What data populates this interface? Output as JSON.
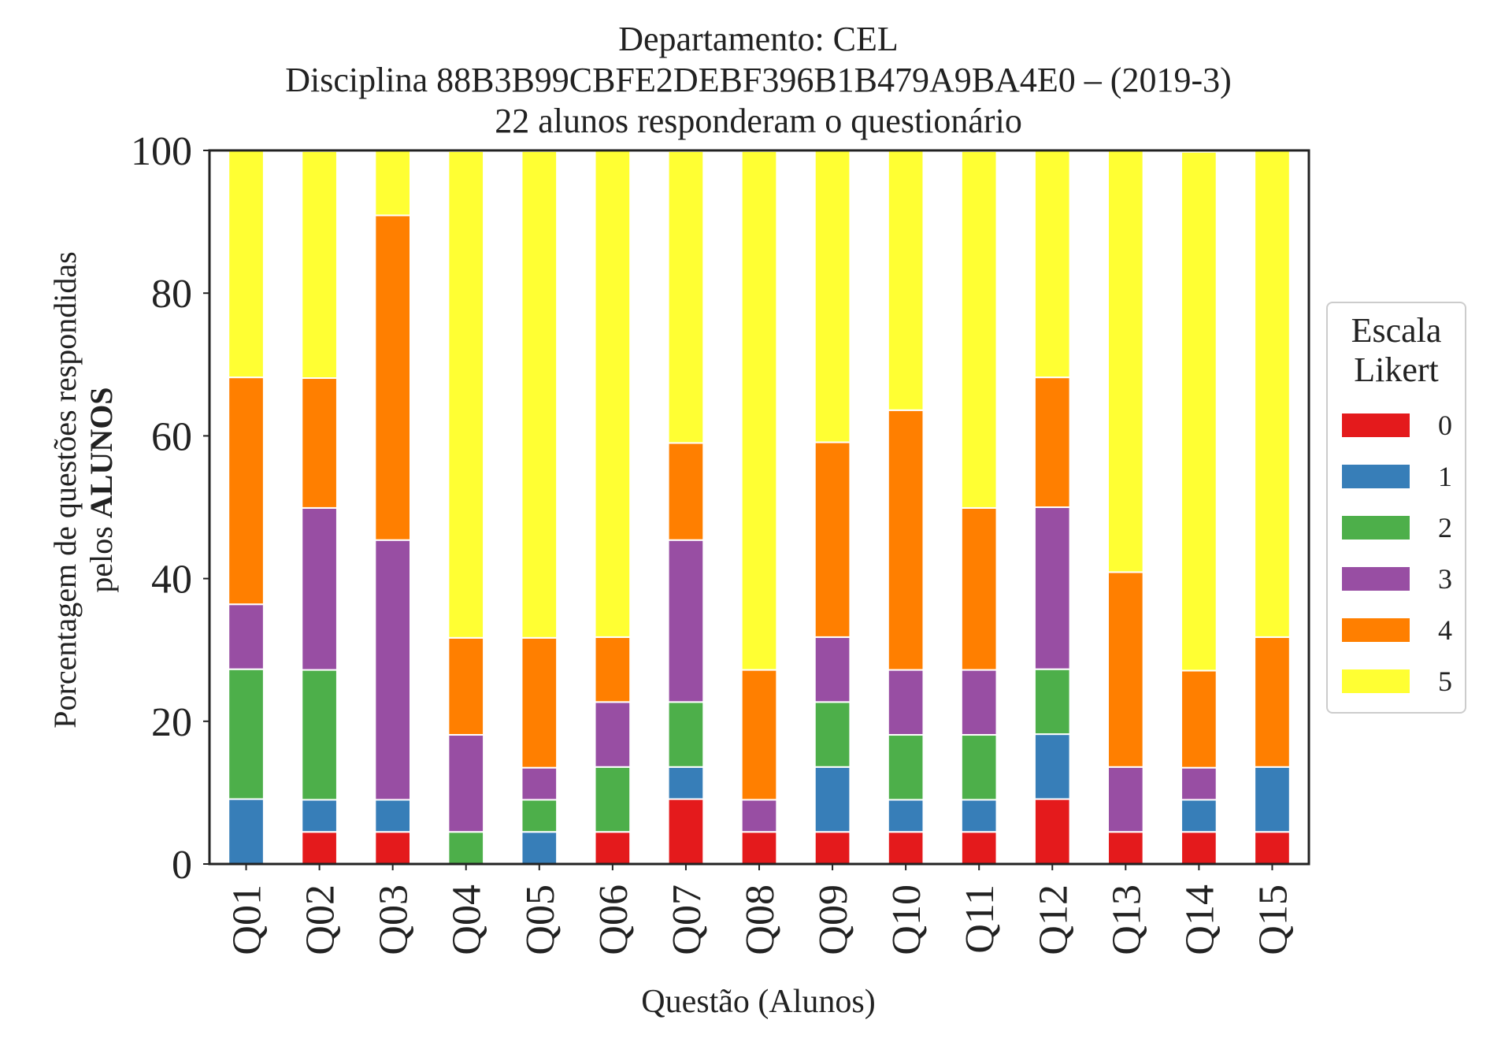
{
  "title": {
    "line1": "Departamento: CEL",
    "line2": "Disciplina 88B3B99CBFE2DEBF396B1B479A9BA4E0 – (2019-3)",
    "line3": "22 alunos responderam o questionário"
  },
  "axes": {
    "ylabel_line1": "Porcentagem de questões respondidas",
    "ylabel_line2_prefix": "pelos ",
    "ylabel_line2_bold": "ALUNOS",
    "xlabel": "Questão (Alunos)"
  },
  "legend": {
    "title_line1": "Escala",
    "title_line2": "Likert",
    "placement": "center-right outside"
  },
  "chart_data": {
    "type": "bar",
    "stacked": true,
    "ylim": [
      0,
      100
    ],
    "yticks": [
      "0",
      "20",
      "40",
      "60",
      "80",
      "100"
    ],
    "grid": false,
    "categories": [
      "Q01",
      "Q02",
      "Q03",
      "Q04",
      "Q05",
      "Q06",
      "Q07",
      "Q08",
      "Q09",
      "Q10",
      "Q11",
      "Q12",
      "Q13",
      "Q14",
      "Q15"
    ],
    "series": [
      {
        "name": "0",
        "color": "#e41a1c",
        "values": [
          0,
          4.5,
          4.5,
          0,
          0,
          4.5,
          9.1,
          4.5,
          4.5,
          4.5,
          4.5,
          9.1,
          4.5,
          4.5,
          4.5
        ]
      },
      {
        "name": "1",
        "color": "#377eb8",
        "values": [
          9.1,
          4.5,
          4.5,
          0,
          4.5,
          0,
          4.5,
          0,
          9.1,
          4.5,
          4.5,
          9.1,
          0,
          4.5,
          9.1
        ]
      },
      {
        "name": "2",
        "color": "#4daf4a",
        "values": [
          18.2,
          18.2,
          0,
          4.5,
          4.5,
          9.1,
          9.1,
          0,
          9.1,
          9.1,
          9.1,
          9.1,
          0,
          0,
          0
        ]
      },
      {
        "name": "3",
        "color": "#984ea3",
        "values": [
          9.1,
          22.7,
          36.4,
          13.6,
          4.5,
          9.1,
          22.7,
          4.5,
          9.1,
          9.1,
          9.1,
          22.7,
          9.1,
          4.5,
          0
        ]
      },
      {
        "name": "4",
        "color": "#ff7f00",
        "values": [
          31.8,
          18.2,
          45.5,
          13.6,
          18.2,
          9.1,
          13.6,
          18.2,
          27.3,
          36.4,
          22.7,
          18.2,
          27.3,
          13.6,
          18.2
        ]
      },
      {
        "name": "5",
        "color": "#ffff33",
        "values": [
          31.8,
          31.8,
          9.1,
          68.2,
          68.2,
          68.2,
          40.9,
          72.7,
          40.9,
          36.4,
          50.0,
          31.8,
          59.1,
          72.7,
          68.2
        ]
      }
    ]
  }
}
